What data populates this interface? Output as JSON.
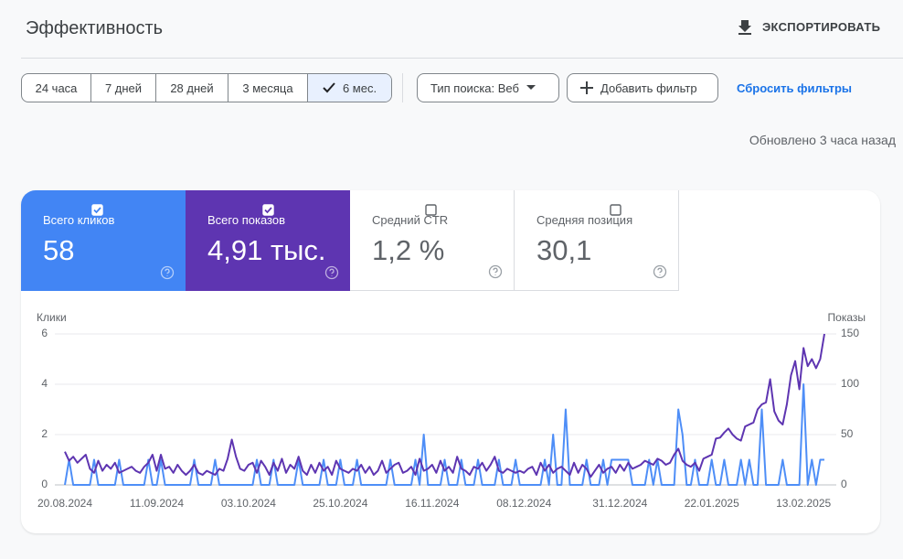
{
  "header": {
    "title": "Эффективность",
    "export": "ЭКСПОРТИРОВАТЬ"
  },
  "filters": {
    "ranges": [
      "24 часа",
      "7 дней",
      "28 дней",
      "3 месяца",
      "6 мес."
    ],
    "selected": 4,
    "search_type": "Тип поиска: Веб",
    "add_filter": "Добавить фильтр",
    "reset": "Сбросить фильтры"
  },
  "updated": "Обновлено 3 часа назад",
  "metrics": [
    {
      "label": "Всего кликов",
      "value": "58",
      "checked": true,
      "color": "#4285f4"
    },
    {
      "label": "Всего показов",
      "value": "4,91 тыс.",
      "checked": true,
      "color": "#5e35b1"
    },
    {
      "label": "Средний CTR",
      "value": "1,2 %",
      "checked": false
    },
    {
      "label": "Средняя позиция",
      "value": "30,1",
      "checked": false
    }
  ],
  "chart_data": {
    "type": "line",
    "ylabel": "Клики",
    "y2label": "Показы",
    "ylim": [
      0,
      6
    ],
    "yticks": [
      0,
      2,
      4,
      6
    ],
    "y2lim": [
      0,
      150
    ],
    "y2ticks": [
      0,
      50,
      100,
      150
    ],
    "grid": true,
    "categories": [
      "20.08.2024",
      null,
      null,
      null,
      null,
      null,
      null,
      null,
      null,
      null,
      null,
      null,
      null,
      null,
      null,
      null,
      null,
      null,
      null,
      null,
      null,
      null,
      "11.09.2024",
      null,
      null,
      null,
      null,
      null,
      null,
      null,
      null,
      null,
      null,
      null,
      null,
      null,
      null,
      null,
      null,
      null,
      null,
      null,
      null,
      null,
      "03.10.2024",
      null,
      null,
      null,
      null,
      null,
      null,
      null,
      null,
      null,
      null,
      null,
      null,
      null,
      null,
      null,
      null,
      null,
      null,
      null,
      null,
      null,
      "25.10.2024",
      null,
      null,
      null,
      null,
      null,
      null,
      null,
      null,
      null,
      null,
      null,
      null,
      null,
      null,
      null,
      null,
      null,
      null,
      null,
      null,
      null,
      "16.11.2024",
      null,
      null,
      null,
      null,
      null,
      null,
      null,
      null,
      null,
      null,
      null,
      null,
      null,
      null,
      null,
      null,
      null,
      null,
      null,
      null,
      null,
      "08.12.2024",
      null,
      null,
      null,
      null,
      null,
      null,
      null,
      null,
      null,
      null,
      null,
      null,
      null,
      null,
      null,
      null,
      null,
      null,
      null,
      null,
      null,
      null,
      "31.12.2024",
      null,
      null,
      null,
      null,
      null,
      null,
      null,
      null,
      null,
      null,
      null,
      null,
      null,
      null,
      null,
      null,
      null,
      null,
      null,
      null,
      null,
      "22.01.2025",
      null,
      null,
      null,
      null,
      null,
      null,
      null,
      null,
      null,
      null,
      null,
      null,
      null,
      null,
      null,
      null,
      null,
      null,
      null,
      null,
      null,
      "13.02.2025",
      null,
      null,
      null,
      null,
      null
    ],
    "series": [
      {
        "color": "#4e8ef7",
        "values": [
          0,
          1,
          0,
          0,
          0,
          0,
          0,
          1,
          0,
          0,
          0,
          0,
          0,
          1,
          0,
          0,
          0,
          0,
          0,
          0,
          1,
          0,
          0,
          1,
          0,
          0,
          0,
          0,
          0,
          0,
          0,
          1,
          0,
          0,
          0,
          0,
          1,
          0,
          0,
          0,
          0,
          0,
          0,
          0,
          0,
          0,
          1,
          0,
          0,
          0,
          1,
          0,
          0,
          0,
          0,
          0,
          1,
          0,
          0,
          0,
          0,
          0,
          1,
          0,
          0,
          0,
          1,
          0,
          0,
          0,
          1,
          0,
          0,
          0,
          0,
          0,
          0,
          0,
          1,
          0,
          0,
          0,
          0,
          0,
          1,
          0,
          2,
          0,
          0,
          0,
          0,
          1,
          0,
          0,
          0,
          1,
          0,
          0,
          0,
          1,
          0,
          0,
          0,
          0,
          1,
          0,
          0,
          0,
          1,
          0,
          0,
          0,
          0,
          0,
          0,
          1,
          0,
          2,
          0,
          0,
          3,
          0,
          0,
          0,
          0,
          1,
          0,
          0,
          0,
          1,
          0,
          1,
          1,
          1,
          1,
          1,
          0,
          0,
          0,
          0,
          1,
          0,
          1,
          0,
          0,
          0,
          0,
          3,
          2,
          0,
          0,
          1,
          0,
          0,
          0,
          1,
          0,
          0,
          1,
          0,
          0,
          0,
          1,
          0,
          1,
          0,
          0,
          3,
          0,
          0,
          0,
          0,
          1,
          0,
          0,
          0,
          0,
          4,
          0,
          1,
          0,
          1,
          1
        ]
      },
      {
        "color": "#5e35b1",
        "axis": "y2",
        "values": [
          33,
          24,
          28,
          22,
          26,
          30,
          16,
          12,
          24,
          14,
          20,
          16,
          22,
          12,
          14,
          16,
          18,
          14,
          12,
          18,
          22,
          30,
          14,
          30,
          16,
          18,
          12,
          20,
          14,
          10,
          14,
          20,
          12,
          10,
          14,
          12,
          10,
          16,
          14,
          26,
          45,
          28,
          16,
          14,
          20,
          22,
          12,
          24,
          18,
          10,
          22,
          14,
          26,
          12,
          20,
          16,
          28,
          14,
          10,
          20,
          12,
          22,
          14,
          18,
          10,
          24,
          16,
          14,
          12,
          16,
          14,
          20,
          12,
          18,
          10,
          14,
          24,
          12,
          16,
          20,
          22,
          12,
          14,
          18,
          10,
          26,
          14,
          16,
          20,
          12,
          24,
          14,
          18,
          12,
          28,
          16,
          14,
          10,
          18,
          16,
          22,
          14,
          20,
          28,
          14,
          12,
          16,
          14,
          12,
          14,
          12,
          16,
          18,
          10,
          22,
          14,
          20,
          12,
          16,
          18,
          14,
          10,
          22,
          12,
          20,
          16,
          8,
          14,
          20,
          12,
          16,
          18,
          12,
          20,
          14,
          22,
          16,
          18,
          20,
          24,
          22,
          20,
          26,
          24,
          20,
          22,
          30,
          36,
          24,
          20,
          18,
          22,
          14,
          26,
          28,
          30,
          46,
          47,
          52,
          56,
          50,
          46,
          44,
          58,
          60,
          62,
          75,
          80,
          82,
          105,
          73,
          64,
          60,
          80,
          109,
          123,
          95,
          136,
          118,
          125,
          116,
          125,
          150
        ]
      }
    ]
  }
}
